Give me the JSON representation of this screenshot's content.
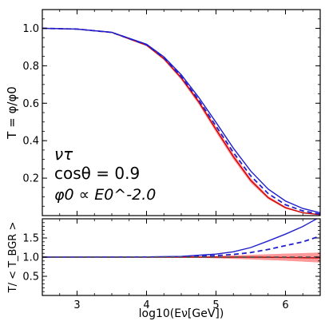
{
  "chart_data": [
    {
      "type": "line",
      "panel": "top",
      "ylabel": "T = φ/φ0",
      "xlim": [
        2.5,
        6.5
      ],
      "ylim": [
        0.0,
        1.1
      ],
      "xticks": [
        3,
        4,
        5,
        6
      ],
      "yticks": [
        0.2,
        0.4,
        0.6,
        0.8,
        1.0
      ],
      "ytick_labels": [
        "0.2",
        "0.4",
        "0.6",
        "0.8",
        "1.0"
      ],
      "annotation": {
        "line1": "ντ",
        "line2": "cosθ = 0.9",
        "line3": "φ0 ∝ E0^-2.0"
      },
      "band": {
        "color": "#ff4444",
        "x": [
          2.5,
          3.0,
          3.5,
          4.0,
          4.25,
          4.5,
          4.75,
          5.0,
          5.25,
          5.5,
          5.75,
          6.0,
          6.25,
          6.5
        ],
        "lower": [
          1.0,
          0.995,
          0.975,
          0.905,
          0.83,
          0.725,
          0.595,
          0.445,
          0.3,
          0.175,
          0.088,
          0.037,
          0.013,
          0.004
        ],
        "upper": [
          1.0,
          0.997,
          0.98,
          0.915,
          0.845,
          0.745,
          0.62,
          0.475,
          0.33,
          0.2,
          0.105,
          0.048,
          0.018,
          0.006
        ]
      },
      "series": [
        {
          "style": "solid",
          "color": "#cc0000",
          "x": [
            2.5,
            3.0,
            3.5,
            4.0,
            4.25,
            4.5,
            4.75,
            5.0,
            5.25,
            5.5,
            5.75,
            6.0,
            6.25,
            6.5
          ],
          "y": [
            1.0,
            0.996,
            0.978,
            0.91,
            0.838,
            0.735,
            0.608,
            0.46,
            0.315,
            0.188,
            0.096,
            0.042,
            0.015,
            0.005
          ]
        },
        {
          "style": "solid",
          "color": "#1f1fcc",
          "x": [
            2.5,
            3.0,
            3.5,
            4.0,
            4.25,
            4.5,
            4.75,
            5.0,
            5.25,
            5.5,
            5.75,
            6.0,
            6.25,
            6.5
          ],
          "y": [
            1.0,
            0.996,
            0.979,
            0.915,
            0.848,
            0.752,
            0.632,
            0.498,
            0.36,
            0.238,
            0.142,
            0.078,
            0.038,
            0.015
          ]
        },
        {
          "style": "dashed",
          "color": "#1f1fcc",
          "x": [
            2.5,
            3.0,
            3.5,
            4.0,
            4.25,
            4.5,
            4.75,
            5.0,
            5.25,
            5.5,
            5.75,
            6.0,
            6.25,
            6.5
          ],
          "y": [
            1.0,
            0.996,
            0.978,
            0.912,
            0.842,
            0.742,
            0.618,
            0.478,
            0.337,
            0.212,
            0.118,
            0.058,
            0.025,
            0.008
          ]
        }
      ]
    },
    {
      "type": "line",
      "panel": "bottom",
      "xlabel": "log10(Eν[GeV])",
      "ylabel": "T/ < T_BGR >",
      "xlim": [
        2.5,
        6.5
      ],
      "ylim": [
        0.0,
        2.0
      ],
      "xticks": [
        3,
        4,
        5,
        6
      ],
      "xtick_labels": [
        "3",
        "4",
        "5",
        "6"
      ],
      "yticks": [
        0.5,
        1.0,
        1.5
      ],
      "ytick_labels": [
        "0.5",
        "1.0",
        "1.5"
      ],
      "band": {
        "color": "#ff4444",
        "x": [
          2.5,
          4.0,
          4.5,
          5.0,
          5.5,
          6.0,
          6.5
        ],
        "lower": [
          1.0,
          0.995,
          0.985,
          0.97,
          0.94,
          0.905,
          0.86
        ],
        "upper": [
          1.0,
          1.005,
          1.015,
          1.03,
          1.06,
          1.09,
          1.12
        ]
      },
      "series": [
        {
          "style": "solid",
          "color": "#cc0000",
          "x": [
            2.5,
            4.0,
            4.5,
            5.0,
            5.5,
            6.0,
            6.5
          ],
          "y": [
            1.0,
            1.0,
            1.0,
            1.0,
            1.0,
            0.99,
            0.98
          ]
        },
        {
          "style": "solid",
          "color": "#1f1fcc",
          "x": [
            2.5,
            4.0,
            4.5,
            5.0,
            5.25,
            5.5,
            5.75,
            6.0,
            6.25,
            6.5
          ],
          "y": [
            1.0,
            1.005,
            1.02,
            1.08,
            1.14,
            1.25,
            1.42,
            1.6,
            1.8,
            2.05
          ]
        },
        {
          "style": "dashed",
          "color": "#1f1fcc",
          "x": [
            2.5,
            4.0,
            4.5,
            5.0,
            5.25,
            5.5,
            5.75,
            6.0,
            6.25,
            6.5
          ],
          "y": [
            1.0,
            1.002,
            1.008,
            1.04,
            1.07,
            1.12,
            1.2,
            1.3,
            1.4,
            1.55
          ]
        },
        {
          "style": "dashed",
          "color": "#555555",
          "x": [
            2.5,
            6.5
          ],
          "y": [
            1.0,
            1.0
          ]
        }
      ]
    }
  ]
}
